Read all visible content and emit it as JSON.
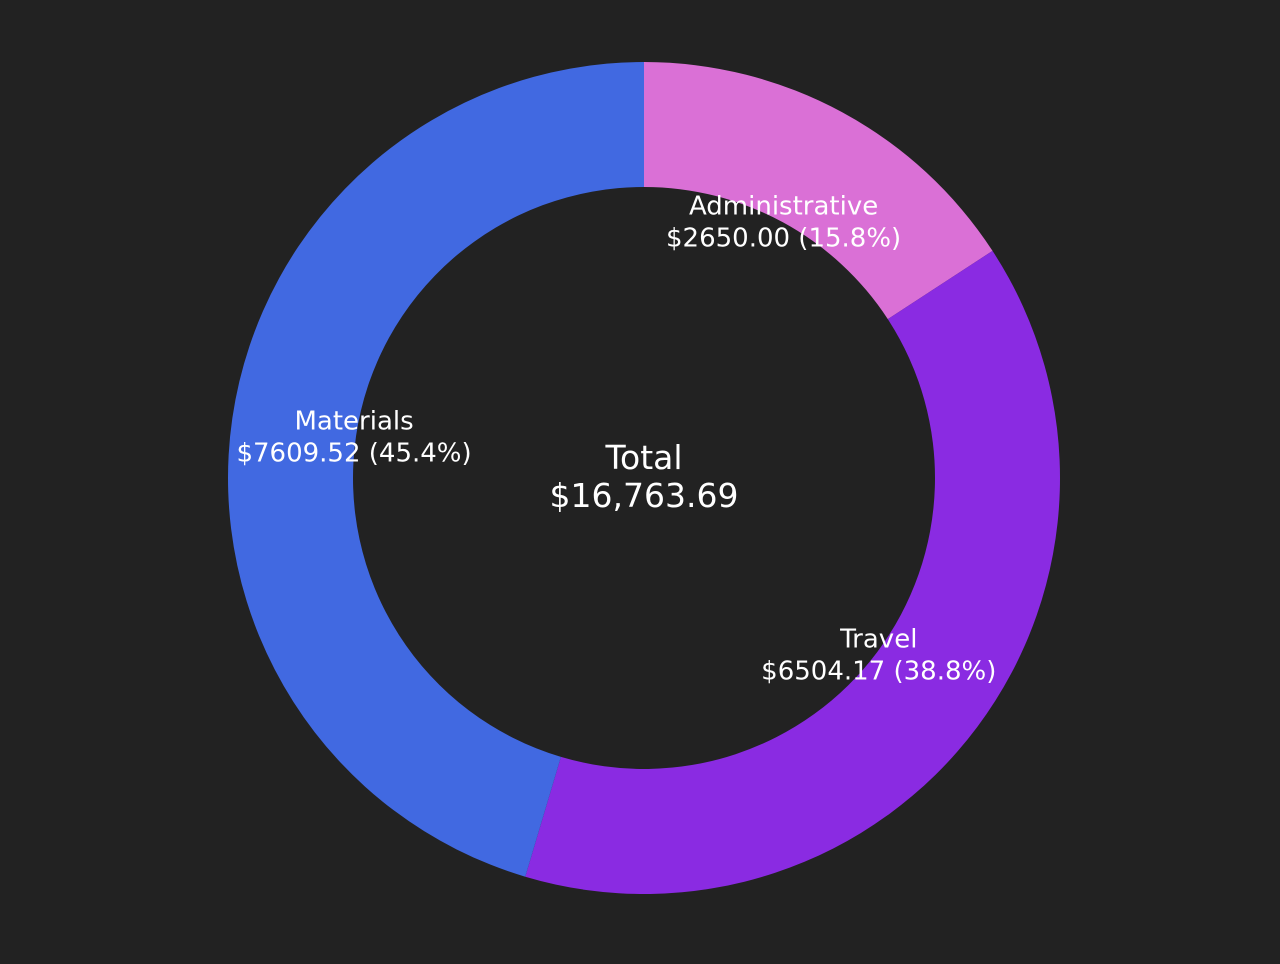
{
  "chart_data": {
    "type": "pie",
    "donut": true,
    "background": "#222222",
    "center": {
      "title": "Total",
      "value": "$16,763.69"
    },
    "slices": [
      {
        "name": "Administrative",
        "value": 2650.0,
        "percent": 15.8,
        "value_label": "$2650.00 (15.8%)",
        "color": "#da70d6"
      },
      {
        "name": "Travel",
        "value": 6504.17,
        "percent": 38.8,
        "value_label": "$6504.17 (38.8%)",
        "color": "#8a2be2"
      },
      {
        "name": "Materials",
        "value": 7609.52,
        "percent": 45.4,
        "value_label": "$7609.52 (45.4%)",
        "color": "#4169e1"
      }
    ]
  }
}
